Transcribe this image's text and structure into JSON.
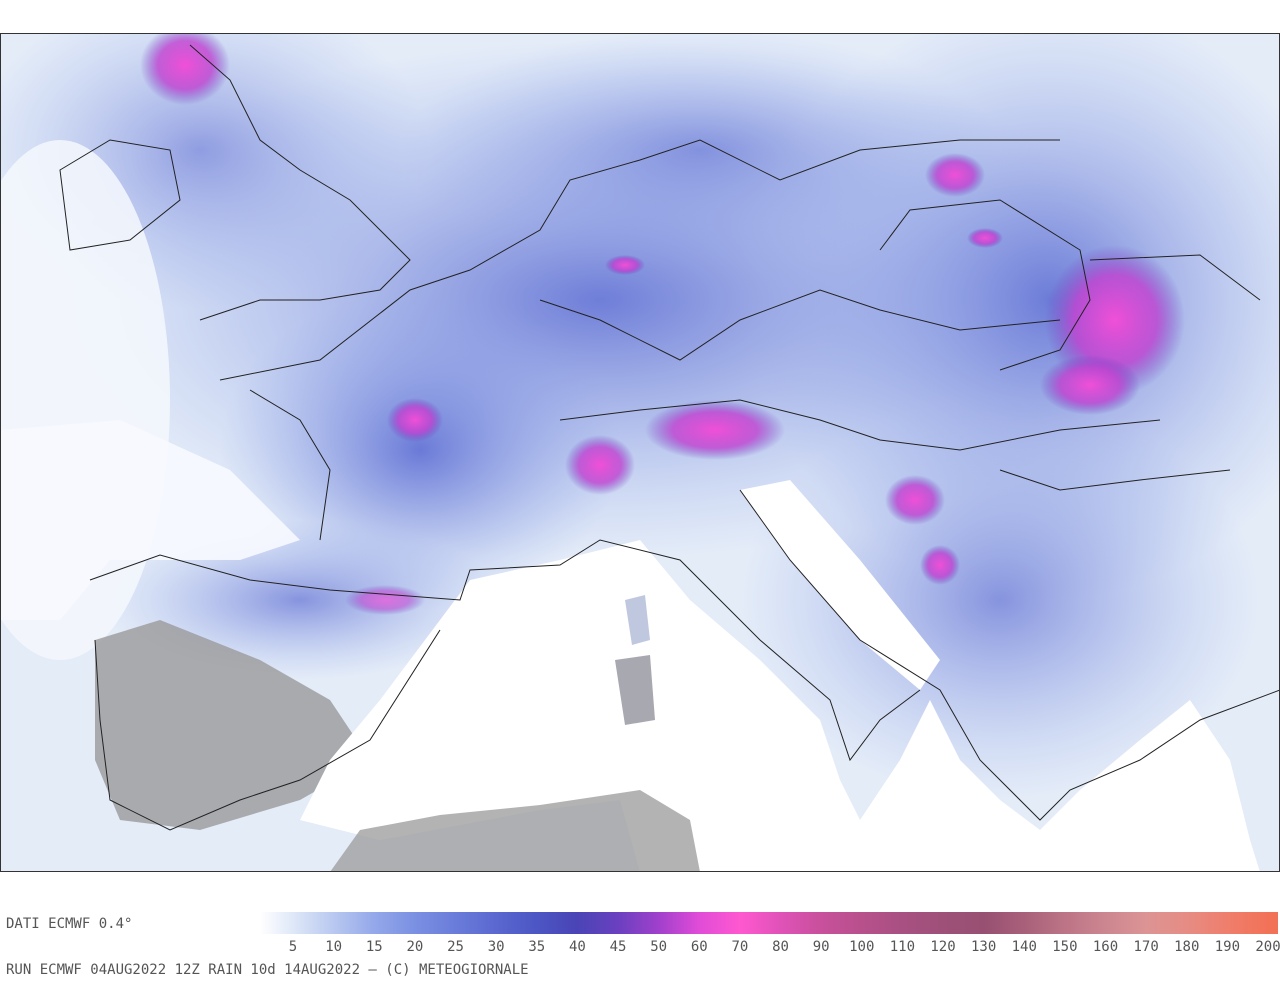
{
  "footer": {
    "source": "DATI ECMWF 0.4°",
    "run": "RUN ECMWF 04AUG2022 12Z RAIN 10d 14AUG2022 — (C) METEOGIORNALE",
    "scale": {
      "ticks": [
        5,
        10,
        15,
        20,
        25,
        30,
        35,
        40,
        45,
        50,
        60,
        70,
        80,
        90,
        100,
        110,
        120,
        130,
        140,
        150,
        160,
        170,
        180,
        190,
        200
      ],
      "colors": [
        "#dfe8f8",
        "#b8c8f0",
        "#94a8ea",
        "#7a90e2",
        "#6a7cda",
        "#5a68d0",
        "#4c56c4",
        "#4a44b6",
        "#6a40c0",
        "#a040cc",
        "#e04cd8",
        "#ff58d0",
        "#e052b8",
        "#c8509c",
        "#b8508c",
        "#a85082",
        "#9e5078",
        "#985072",
        "#a8607a",
        "#bc7486",
        "#cc8690",
        "#dc9494",
        "#e68c84",
        "#ef7e6c",
        "#f27258"
      ]
    }
  }
}
